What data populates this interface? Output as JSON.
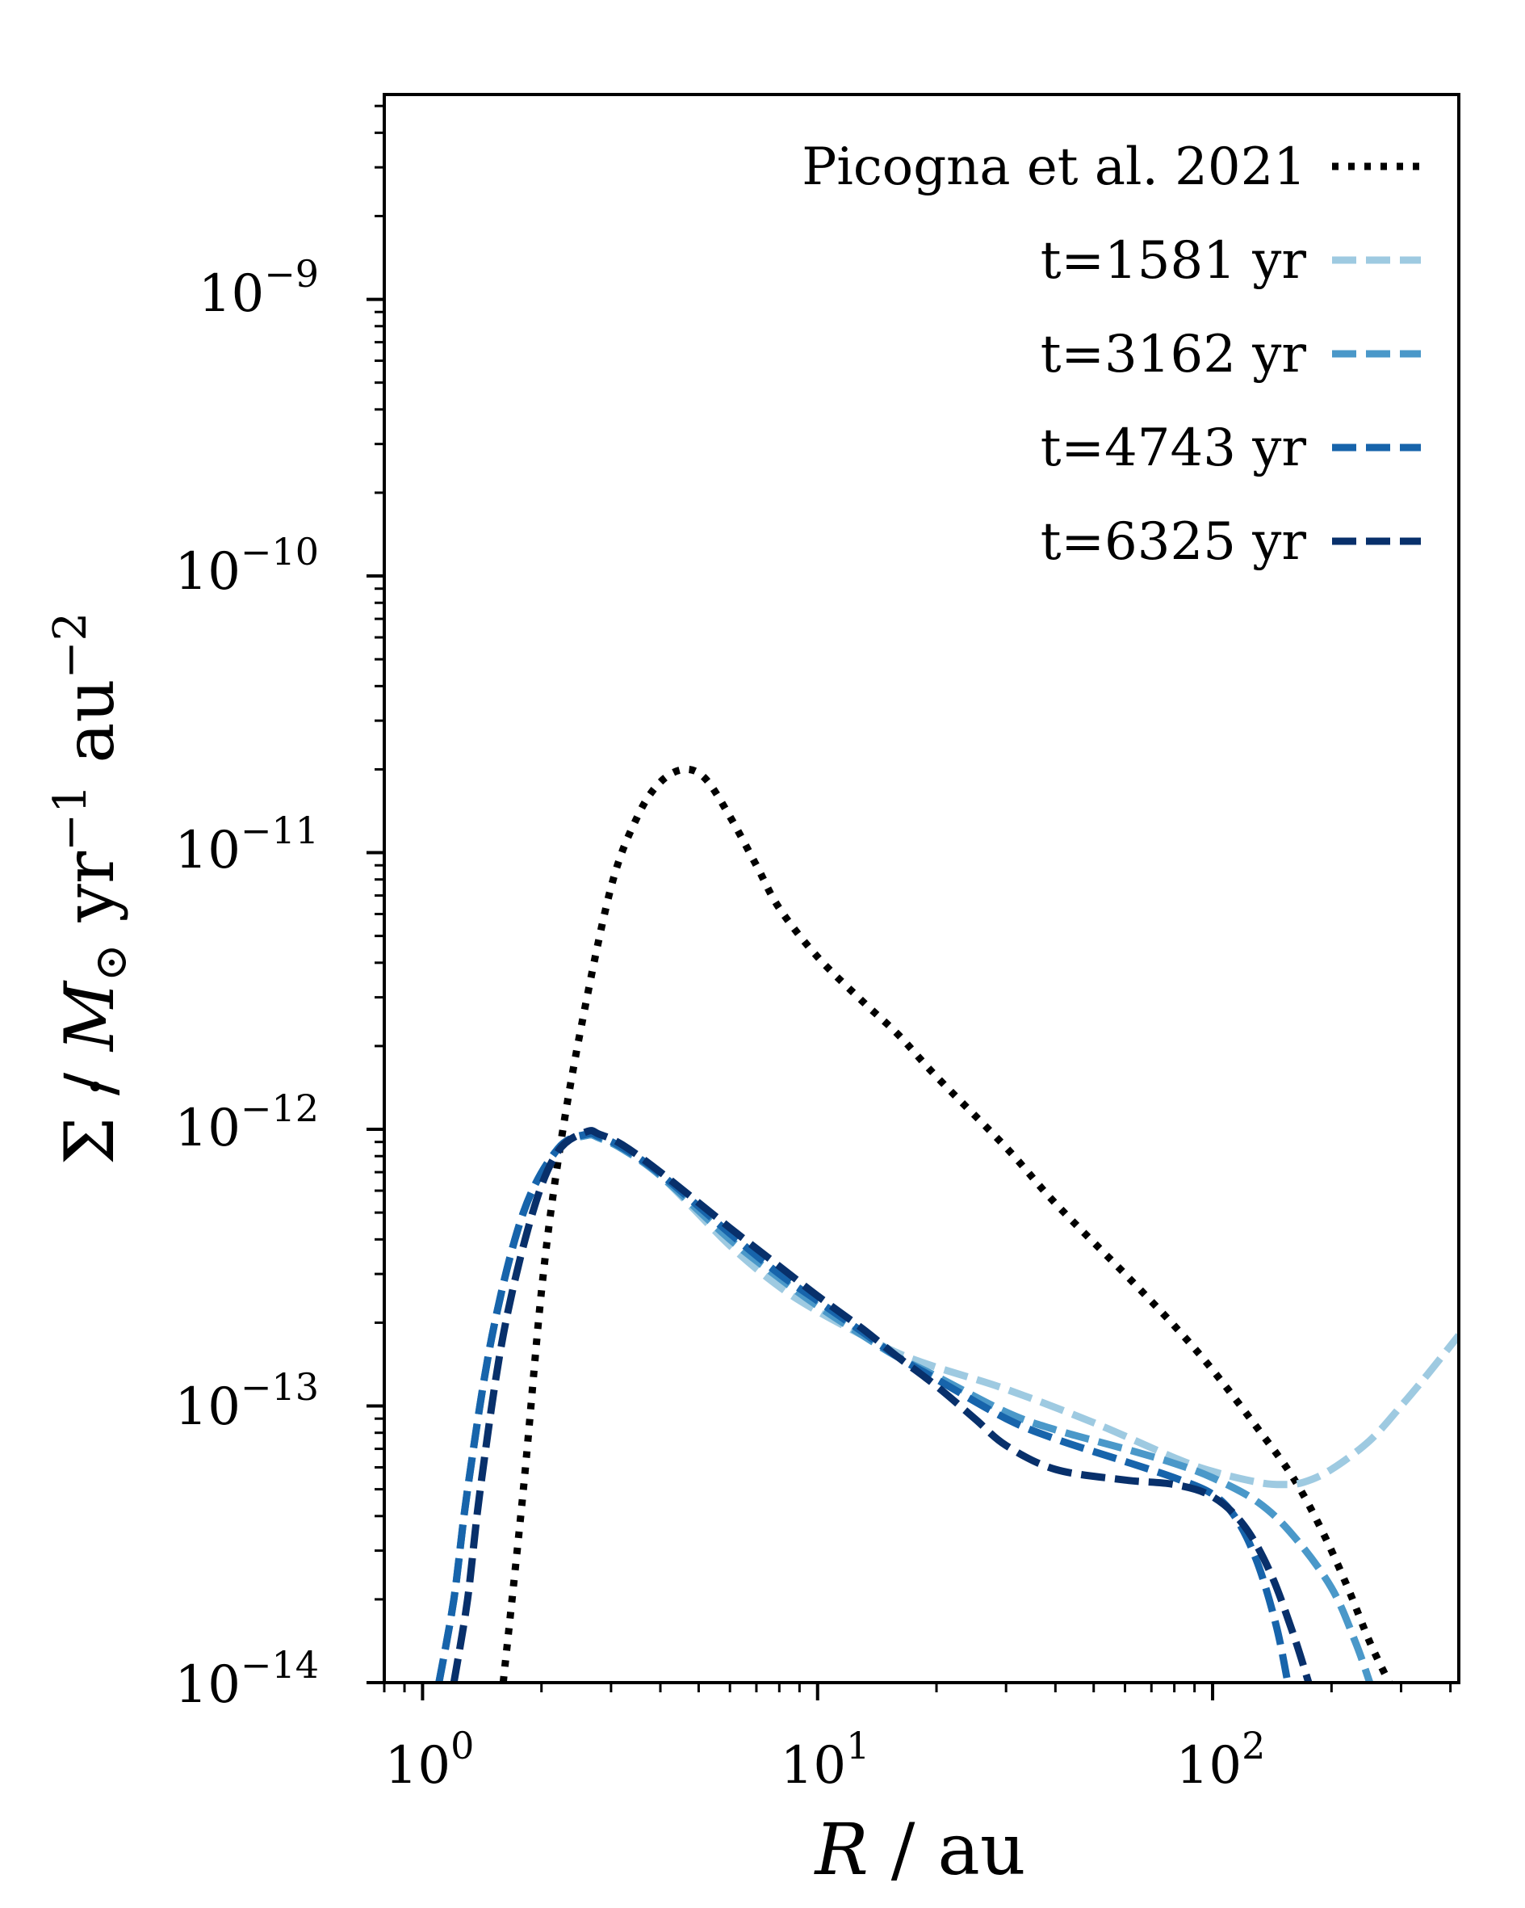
{
  "chart_data": {
    "type": "line",
    "title": "",
    "xlabel": {
      "var": "R",
      "unit": "au"
    },
    "ylabel": {
      "sym": "Σ",
      "unit_mass": "M",
      "unit_sub": "⊙",
      "yr": "yr",
      "yr_exp": "−1",
      "au": "au",
      "au_exp": "−2"
    },
    "xscale": "log",
    "yscale": "log",
    "xlim": [
      0.8,
      420
    ],
    "ylim": [
      1e-14,
      5.5e-09
    ],
    "xticks": [
      {
        "value": 1,
        "base": "10",
        "exp": "0"
      },
      {
        "value": 10,
        "base": "10",
        "exp": "1"
      },
      {
        "value": 100,
        "base": "10",
        "exp": "2"
      }
    ],
    "yticks": [
      {
        "value": 1e-14,
        "base": "10",
        "exp": "−14"
      },
      {
        "value": 1e-13,
        "base": "10",
        "exp": "−13"
      },
      {
        "value": 1e-12,
        "base": "10",
        "exp": "−12"
      },
      {
        "value": 1e-11,
        "base": "10",
        "exp": "−11"
      },
      {
        "value": 1e-10,
        "base": "10",
        "exp": "−10"
      },
      {
        "value": 1e-09,
        "base": "10",
        "exp": "−9"
      }
    ],
    "legend_position": "top-right",
    "series": [
      {
        "name": "Picogna et al. 2021",
        "color": "#000000",
        "style": "dotted",
        "x": [
          1.6,
          1.8,
          2.0,
          2.2,
          2.5,
          3.0,
          3.5,
          4.0,
          4.6,
          5.2,
          6.0,
          7.0,
          8.0,
          10,
          13,
          16,
          20,
          30,
          40,
          60,
          80,
          100,
          130,
          160,
          190,
          220,
          250,
          280
        ],
        "y": [
          1e-14,
          5e-14,
          2.6e-13,
          7.6e-13,
          2.2e-12,
          7.5e-12,
          1.35e-11,
          1.8e-11,
          2e-11,
          1.85e-11,
          1.35e-11,
          9e-12,
          6.3e-12,
          4.2e-12,
          2.9e-12,
          2.2e-12,
          1.55e-12,
          8.6e-13,
          5.4e-13,
          3e-13,
          1.95e-13,
          1.35e-13,
          8.3e-14,
          5.5e-14,
          3.5e-14,
          2.2e-14,
          1.4e-14,
          1e-14
        ]
      },
      {
        "name": "t=1581 yr",
        "color": "#9ecae1",
        "style": "dashed",
        "x": [
          1.1,
          1.2,
          1.3,
          1.5,
          1.8,
          2.2,
          2.6,
          2.8,
          3.2,
          4.0,
          6.0,
          8.0,
          10,
          13,
          16,
          20,
          30,
          50,
          80,
          100,
          130,
          150,
          170,
          200,
          250,
          300,
          350,
          420
        ],
        "y": [
          1e-14,
          2e-14,
          5e-14,
          1.8e-13,
          5e-13,
          8.5e-13,
          9.5e-13,
          9.3e-13,
          8.5e-13,
          6.8e-13,
          3.8e-13,
          2.7e-13,
          2.2e-13,
          1.8e-13,
          1.55e-13,
          1.38e-13,
          1.15e-13,
          8.7e-14,
          6.5e-14,
          5.8e-14,
          5.3e-14,
          5.2e-14,
          5.3e-14,
          5.9e-14,
          7.5e-14,
          1e-13,
          1.3e-13,
          1.8e-13
        ]
      },
      {
        "name": "t=3162 yr",
        "color": "#4a98c9",
        "style": "dashed",
        "x": [
          1.1,
          1.2,
          1.3,
          1.5,
          1.8,
          2.2,
          2.6,
          2.8,
          3.2,
          4.0,
          6.0,
          8.0,
          10,
          13,
          16,
          20,
          30,
          40,
          60,
          80,
          100,
          130,
          160,
          200,
          230,
          250
        ],
        "y": [
          1e-14,
          2e-14,
          5e-14,
          1.8e-13,
          5e-13,
          8.5e-13,
          9.5e-13,
          9.3e-13,
          8.5e-13,
          6.8e-13,
          4e-13,
          2.9e-13,
          2.3e-13,
          1.8e-13,
          1.5e-13,
          1.28e-13,
          9.5e-14,
          8.2e-14,
          7e-14,
          6.2e-14,
          5.5e-14,
          4.5e-14,
          3.4e-14,
          2.2e-14,
          1.4e-14,
          1e-14
        ]
      },
      {
        "name": "t=4743 yr",
        "color": "#1764ab",
        "style": "dashed",
        "x": [
          1.1,
          1.2,
          1.3,
          1.5,
          1.8,
          2.2,
          2.6,
          2.8,
          3.2,
          4.0,
          6.0,
          8.0,
          10,
          13,
          16,
          20,
          30,
          40,
          60,
          80,
          100,
          115,
          130,
          145,
          155
        ],
        "y": [
          1e-14,
          2e-14,
          5e-14,
          1.8e-13,
          5e-13,
          8.5e-13,
          9.6e-13,
          9.4e-13,
          8.6e-13,
          6.9e-13,
          4.2e-13,
          3e-13,
          2.4e-13,
          1.85e-13,
          1.5e-13,
          1.25e-13,
          9e-14,
          7.6e-14,
          6.3e-14,
          5.5e-14,
          4.8e-14,
          3.9e-14,
          2.7e-14,
          1.6e-14,
          1e-14
        ]
      },
      {
        "name": "t=6325 yr",
        "color": "#08306b",
        "style": "dashed",
        "x": [
          1.2,
          1.3,
          1.4,
          1.6,
          1.9,
          2.2,
          2.6,
          2.8,
          3.2,
          4.0,
          6.0,
          8.0,
          10,
          13,
          16,
          20,
          25,
          30,
          40,
          60,
          80,
          100,
          120,
          140,
          160,
          175
        ],
        "y": [
          1e-14,
          2e-14,
          5e-14,
          1.8e-13,
          5e-13,
          8.3e-13,
          9.8e-13,
          9.6e-13,
          8.8e-13,
          7e-13,
          4.4e-13,
          3.2e-13,
          2.5e-13,
          1.9e-13,
          1.5e-13,
          1.18e-13,
          9e-14,
          7.2e-14,
          5.9e-14,
          5.4e-14,
          5.2e-14,
          4.7e-14,
          3.7e-14,
          2.5e-14,
          1.5e-14,
          1e-14
        ]
      }
    ]
  }
}
